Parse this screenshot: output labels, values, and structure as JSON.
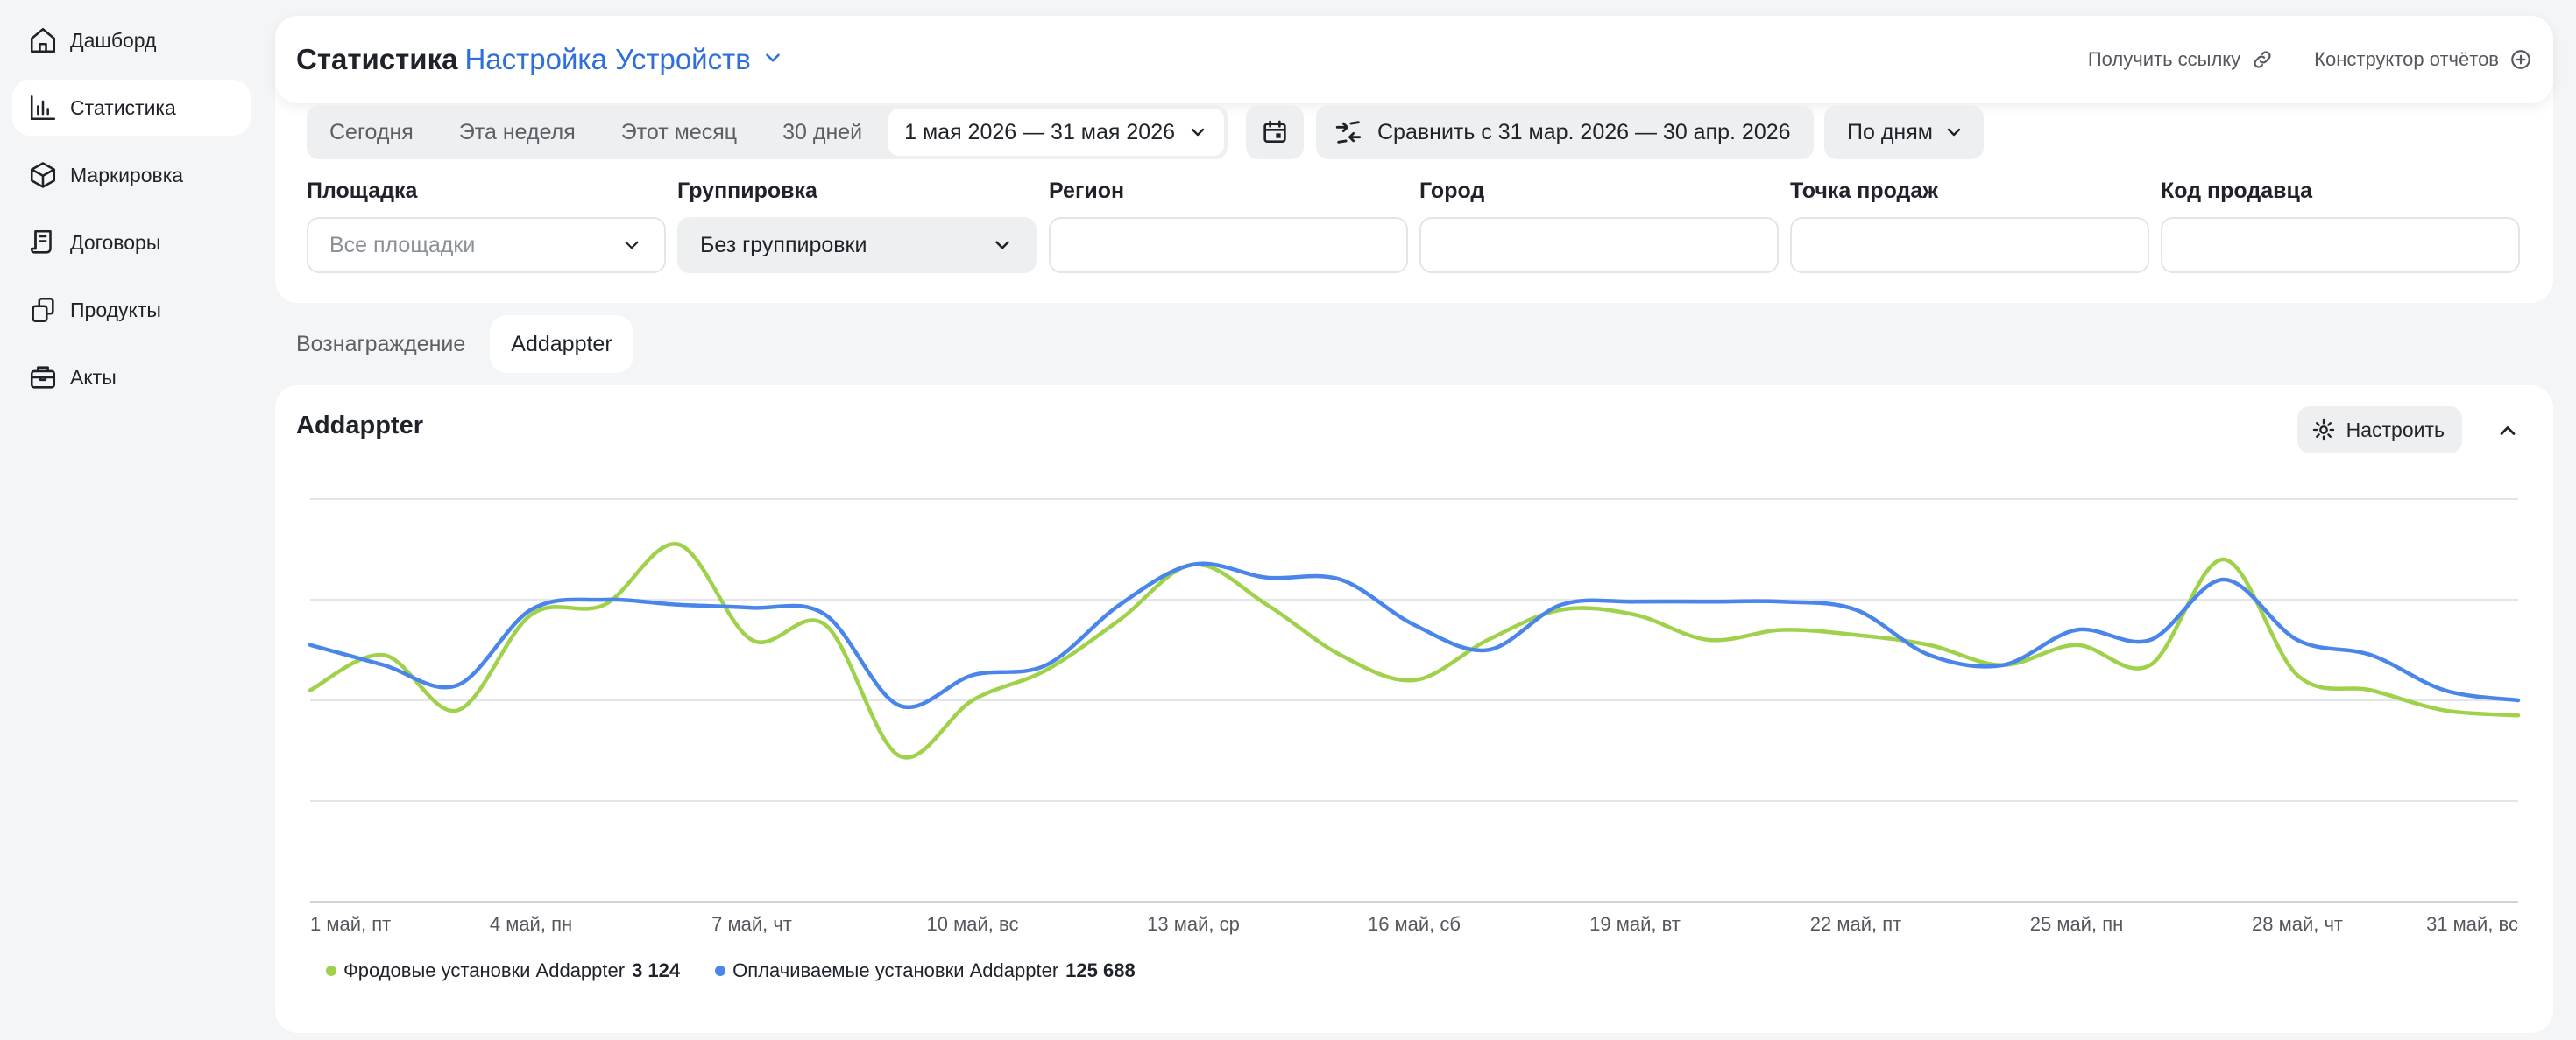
{
  "sidebar": {
    "items": [
      {
        "label": "Дашборд",
        "icon": "home-icon"
      },
      {
        "label": "Статистика",
        "icon": "chart-icon",
        "active": true
      },
      {
        "label": "Маркировка",
        "icon": "cube-icon"
      },
      {
        "label": "Договоры",
        "icon": "contract-icon"
      },
      {
        "label": "Продукты",
        "icon": "products-icon"
      },
      {
        "label": "Акты",
        "icon": "briefcase-icon"
      }
    ]
  },
  "header": {
    "title": "Статистика",
    "subtitle_link": "Настройка Устройств",
    "get_link": "Получить ссылку",
    "report_builder": "Конструктор отчётов"
  },
  "periods": {
    "today": "Сегодня",
    "week": "Эта неделя",
    "month": "Этот месяц",
    "days30": "30 дней",
    "range": "1 мая 2026 — 31 мая 2026",
    "compare": "Сравнить с 31 мар. 2026 — 30 апр. 2026",
    "granularity": "По дням"
  },
  "filters": [
    {
      "label": "Площадка",
      "value": "",
      "placeholder": "Все площадки",
      "dropdown": true
    },
    {
      "label": "Группировка",
      "value": "Без группировки",
      "placeholder": "",
      "dropdown": true
    },
    {
      "label": "Регион",
      "value": "",
      "placeholder": ""
    },
    {
      "label": "Город",
      "value": "",
      "placeholder": ""
    },
    {
      "label": "Точка продаж",
      "value": "",
      "placeholder": ""
    },
    {
      "label": "Код продавца",
      "value": "",
      "placeholder": ""
    }
  ],
  "tabs": {
    "reward": "Вознаграждение",
    "addappter": "Addappter"
  },
  "chart_card": {
    "title": "Addappter",
    "configure": "Настроить"
  },
  "colors": {
    "green": "#9fd14a",
    "blue": "#4a86ea",
    "accent": "#2f6fdb"
  },
  "chart_data": {
    "type": "line",
    "x": [
      "1 май, пт",
      "2",
      "3",
      "4 май, пн",
      "5",
      "6",
      "7 май, чт",
      "8",
      "9",
      "10 май, вс",
      "11",
      "12",
      "13 май, ср",
      "14",
      "15",
      "16 май, сб",
      "17",
      "18",
      "19 май, вт",
      "20",
      "21",
      "22 май, пт",
      "23",
      "24",
      "25 май, пн",
      "26",
      "27",
      "28 май, чт",
      "29",
      "30",
      "31 май, вс"
    ],
    "x_tick_labels": [
      "1 май, пт",
      "4 май, пн",
      "7 май, чт",
      "10 май, вс",
      "13 май, ср",
      "16 май, сб",
      "19 май, вт",
      "22 май, пт",
      "25 май, пн",
      "28 май, чт",
      "31 май, вс"
    ],
    "ylim": [
      0,
      4
    ],
    "grid": true,
    "legend": "bottom-left",
    "series": [
      {
        "name": "Фродовые установки Addappter",
        "total": "3 124",
        "color": "#9fd14a",
        "values": [
          2.1,
          2.45,
          1.9,
          2.85,
          2.95,
          3.55,
          2.6,
          2.75,
          1.45,
          2.0,
          2.3,
          2.8,
          3.35,
          2.95,
          2.45,
          2.2,
          2.6,
          2.9,
          2.85,
          2.6,
          2.7,
          2.65,
          2.55,
          2.35,
          2.55,
          2.35,
          3.4,
          2.25,
          2.1,
          1.9,
          1.85
        ]
      },
      {
        "name": "Оплачиваемые установки Addappter",
        "total": "125 688",
        "color": "#4a86ea",
        "values": [
          2.55,
          2.35,
          2.15,
          2.9,
          3.0,
          2.95,
          2.92,
          2.85,
          1.95,
          2.25,
          2.35,
          2.95,
          3.35,
          3.22,
          3.2,
          2.75,
          2.5,
          2.95,
          2.98,
          2.98,
          2.98,
          2.9,
          2.45,
          2.35,
          2.7,
          2.6,
          3.2,
          2.6,
          2.45,
          2.1,
          2.0
        ]
      }
    ]
  }
}
